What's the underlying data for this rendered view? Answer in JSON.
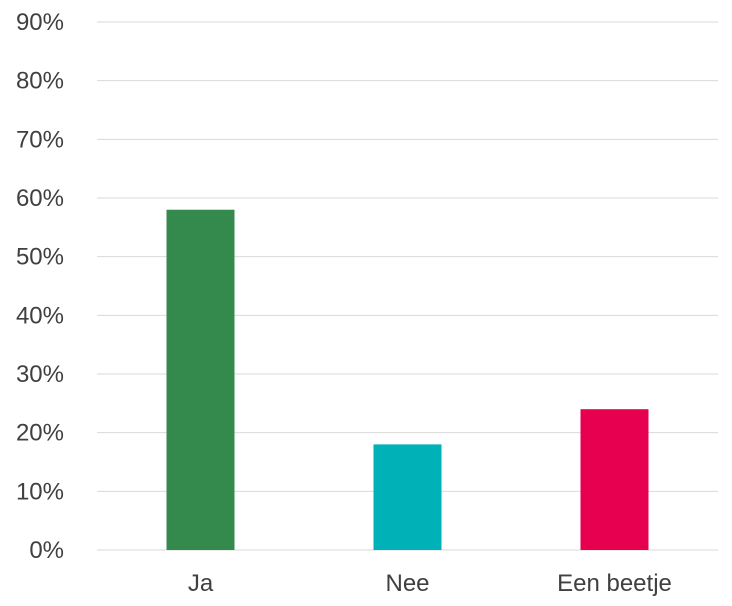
{
  "chart_data": {
    "type": "bar",
    "title": "",
    "xlabel": "",
    "ylabel": "",
    "categories": [
      "Ja",
      "Nee",
      "Een beetje"
    ],
    "values": [
      58,
      18,
      24
    ],
    "ylim": [
      0,
      90
    ],
    "ytick_step": 10,
    "ytick_format": "percent",
    "grid": true,
    "legend": false,
    "colors": [
      "#338a4c",
      "#00b2b8",
      "#e6004f"
    ]
  }
}
